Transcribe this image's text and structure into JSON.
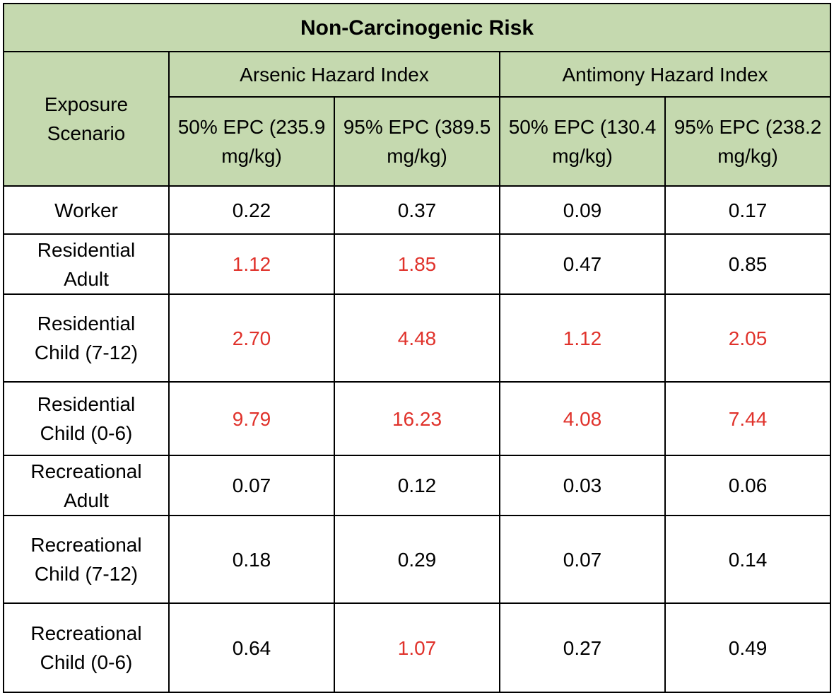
{
  "title": "Non-Carcinogenic Risk",
  "row_header": [
    "Exposure",
    "Scenario"
  ],
  "groups": [
    "Arsenic Hazard Index",
    "Antimony Hazard Index"
  ],
  "subheaders": [
    [
      "50% EPC (235.9",
      "mg/kg)"
    ],
    [
      "95% EPC (389.5",
      "mg/kg)"
    ],
    [
      "50% EPC (130.4",
      "mg/kg)"
    ],
    [
      "95% EPC (238.2",
      "mg/kg)"
    ]
  ],
  "rows": [
    {
      "label": [
        "Worker"
      ],
      "values": [
        "0.22",
        "0.37",
        "0.09",
        "0.17"
      ]
    },
    {
      "label": [
        "Residential",
        "Adult"
      ],
      "values": [
        "1.12",
        "1.85",
        "0.47",
        "0.85"
      ]
    },
    {
      "label": [
        "Residential",
        "Child (7-12)"
      ],
      "values": [
        "2.70",
        "4.48",
        "1.12",
        "2.05"
      ]
    },
    {
      "label": [
        "Residential",
        "Child (0-6)"
      ],
      "values": [
        "9.79",
        "16.23",
        "4.08",
        "7.44"
      ]
    },
    {
      "label": [
        "Recreational",
        "Adult"
      ],
      "values": [
        "0.07",
        "0.12",
        "0.03",
        "0.06"
      ]
    },
    {
      "label": [
        "Recreational",
        "Child (7-12)"
      ],
      "values": [
        "0.18",
        "0.29",
        "0.07",
        "0.14"
      ]
    },
    {
      "label": [
        "Recreational",
        "Child (0-6)"
      ],
      "values": [
        "0.64",
        "1.07",
        "0.27",
        "0.49"
      ]
    }
  ],
  "colors": {
    "header_bg": "#c5d9af",
    "exceedance_text": "#e0322b",
    "normal_text": "#000000"
  }
}
